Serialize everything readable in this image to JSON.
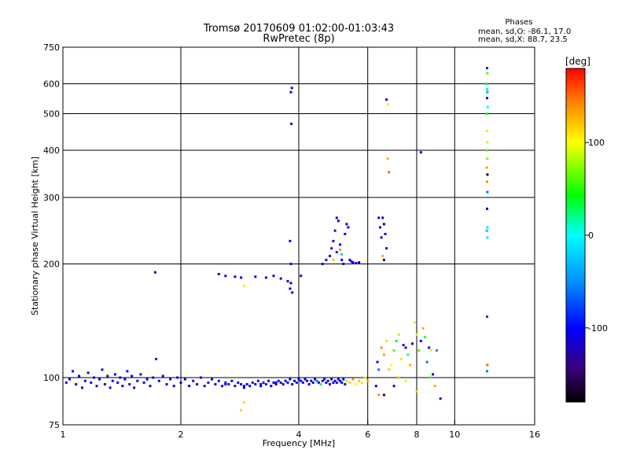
{
  "chart_data": {
    "type": "scatter",
    "title": "Tromsø 20170609 01:02:00-01:03:43",
    "subtitle": "RwPretec (8p)",
    "stats": {
      "heading": "Phases",
      "line1": "mean, sd,O: -86.1, 17.0",
      "line2": "mean, sd,X:  88.7, 23.5"
    },
    "xlabel": "Frequency [MHz]",
    "ylabel": "Stationary phase Virtual Height [km]",
    "x_scale": "log",
    "y_scale": "log",
    "xlim": [
      1,
      16
    ],
    "ylim": [
      75,
      750
    ],
    "x_ticks": [
      1,
      2,
      4,
      6,
      8,
      10,
      16
    ],
    "x_tick_labels": [
      "1",
      "2",
      "4",
      "6",
      "8",
      "10",
      "16"
    ],
    "x_grid": [
      2,
      4,
      6,
      8,
      10
    ],
    "y_ticks": [
      75,
      100,
      200,
      300,
      400,
      500,
      600,
      750
    ],
    "y_tick_labels": [
      "75",
      "100",
      "200",
      "300",
      "400",
      "500",
      "600",
      "750"
    ],
    "y_grid": [
      100,
      200,
      300,
      400,
      500,
      600
    ],
    "colorbar": {
      "label": "[deg]",
      "range": [
        -180,
        180
      ],
      "ticks": [
        100,
        0,
        -100
      ],
      "tick_labels": [
        "100",
        "0",
        "-100"
      ]
    },
    "series": [
      {
        "name": "Phase (deg)",
        "points": [
          [
            1.02,
            97,
            -110
          ],
          [
            1.04,
            99,
            -105
          ],
          [
            1.06,
            104,
            -100
          ],
          [
            1.08,
            96,
            -115
          ],
          [
            1.1,
            101,
            -108
          ],
          [
            1.12,
            94,
            -112
          ],
          [
            1.14,
            98,
            -105
          ],
          [
            1.16,
            103,
            -100
          ],
          [
            1.18,
            97,
            -110
          ],
          [
            1.2,
            100,
            -104
          ],
          [
            1.22,
            95,
            -115
          ],
          [
            1.24,
            99,
            -106
          ],
          [
            1.26,
            105,
            -100
          ],
          [
            1.28,
            96,
            -112
          ],
          [
            1.3,
            101,
            -108
          ],
          [
            1.32,
            94,
            -115
          ],
          [
            1.34,
            98,
            -110
          ],
          [
            1.36,
            102,
            -104
          ],
          [
            1.38,
            97,
            -108
          ],
          [
            1.4,
            100,
            -112
          ],
          [
            1.42,
            95,
            -105
          ],
          [
            1.44,
            99,
            -110
          ],
          [
            1.46,
            104,
            -100
          ],
          [
            1.48,
            96,
            -115
          ],
          [
            1.5,
            101,
            -106
          ],
          [
            1.52,
            94,
            -112
          ],
          [
            1.55,
            98,
            -108
          ],
          [
            1.58,
            102,
            -104
          ],
          [
            1.61,
            97,
            -110
          ],
          [
            1.64,
            99,
            -105
          ],
          [
            1.67,
            95,
            -112
          ],
          [
            1.7,
            100,
            -108
          ],
          [
            1.73,
            112,
            -90
          ],
          [
            1.76,
            98,
            -110
          ],
          [
            1.8,
            101,
            -105
          ],
          [
            1.84,
            96,
            -112
          ],
          [
            1.88,
            99,
            -108
          ],
          [
            1.92,
            95,
            -110
          ],
          [
            1.96,
            100,
            -104
          ],
          [
            2.0,
            97,
            -112
          ],
          [
            2.05,
            99,
            -108
          ],
          [
            2.1,
            95,
            -110
          ],
          [
            2.15,
            98,
            -105
          ],
          [
            2.2,
            96,
            -112
          ],
          [
            2.25,
            100,
            -108
          ],
          [
            2.3,
            95,
            -110
          ],
          [
            2.35,
            97,
            -106
          ],
          [
            2.4,
            99,
            -112
          ],
          [
            2.45,
            96,
            -108
          ],
          [
            2.5,
            98,
            -104
          ],
          [
            2.55,
            95,
            -110
          ],
          [
            2.6,
            97,
            -108
          ],
          [
            2.65,
            96,
            -112
          ],
          [
            2.7,
            98,
            -106
          ],
          [
            2.75,
            95,
            -110
          ],
          [
            2.8,
            97,
            -108
          ],
          [
            2.85,
            96,
            -112
          ],
          [
            2.9,
            94,
            -105
          ],
          [
            2.95,
            96,
            -110
          ],
          [
            3.0,
            95,
            -108
          ],
          [
            3.05,
            97,
            -112
          ],
          [
            3.1,
            96,
            -106
          ],
          [
            3.15,
            98,
            -110
          ],
          [
            3.2,
            95,
            -108
          ],
          [
            3.25,
            97,
            -104
          ],
          [
            3.3,
            96,
            -112
          ],
          [
            3.35,
            98,
            -108
          ],
          [
            3.4,
            95,
            -110
          ],
          [
            3.45,
            97,
            -106
          ],
          [
            3.5,
            96,
            -112
          ],
          [
            3.55,
            98,
            -108
          ],
          [
            3.6,
            97,
            -110
          ],
          [
            3.65,
            96,
            -104
          ],
          [
            3.7,
            98,
            -112
          ],
          [
            3.75,
            97,
            -108
          ],
          [
            3.8,
            99,
            -110
          ],
          [
            3.85,
            96,
            -106
          ],
          [
            3.9,
            98,
            -112
          ],
          [
            3.95,
            97,
            -108
          ],
          [
            4.0,
            99,
            -110
          ],
          [
            4.05,
            98,
            -105
          ],
          [
            4.1,
            97,
            -112
          ],
          [
            4.15,
            99,
            -108
          ],
          [
            4.2,
            98,
            -110
          ],
          [
            4.25,
            96,
            -104
          ],
          [
            4.3,
            98,
            -112
          ],
          [
            4.35,
            97,
            -108
          ],
          [
            4.4,
            99,
            -110
          ],
          [
            4.45,
            98,
            -60
          ],
          [
            4.5,
            97,
            -112
          ],
          [
            4.55,
            96,
            30
          ],
          [
            4.6,
            98,
            -108
          ],
          [
            4.65,
            99,
            -110
          ],
          [
            4.7,
            97,
            -104
          ],
          [
            4.75,
            98,
            -112
          ],
          [
            4.8,
            96,
            -108
          ],
          [
            4.85,
            99,
            -110
          ],
          [
            4.9,
            97,
            -106
          ],
          [
            4.95,
            98,
            -112
          ],
          [
            5.0,
            97,
            -108
          ],
          [
            5.05,
            99,
            -110
          ],
          [
            5.1,
            98,
            -104
          ],
          [
            5.15,
            97,
            -112
          ],
          [
            5.2,
            99,
            -108
          ],
          [
            5.25,
            96,
            -110
          ],
          [
            5.3,
            98,
            80
          ],
          [
            5.4,
            97,
            120
          ],
          [
            5.5,
            99,
            140
          ],
          [
            5.6,
            96,
            100
          ],
          [
            5.7,
            98,
            120
          ],
          [
            5.8,
            97,
            110
          ],
          [
            5.9,
            100,
            90
          ],
          [
            6.0,
            98,
            130
          ],
          [
            2.6,
            96,
            -110
          ],
          [
            2.9,
            95,
            -108
          ],
          [
            3.2,
            96,
            -112
          ],
          [
            3.5,
            97,
            -110
          ],
          [
            2.85,
            82,
            115
          ],
          [
            2.9,
            86,
            110
          ],
          [
            1.72,
            190,
            -110
          ],
          [
            2.5,
            188,
            -110
          ],
          [
            2.6,
            186,
            -108
          ],
          [
            2.75,
            185,
            -112
          ],
          [
            2.85,
            184,
            -110
          ],
          [
            2.9,
            175,
            110
          ],
          [
            3.1,
            185,
            -108
          ],
          [
            3.3,
            184,
            -110
          ],
          [
            3.45,
            186,
            -112
          ],
          [
            3.6,
            183,
            -108
          ],
          [
            3.75,
            180,
            -105
          ],
          [
            3.8,
            172,
            -110
          ],
          [
            3.85,
            168,
            -112
          ],
          [
            3.82,
            178,
            -104
          ],
          [
            4.05,
            186,
            -110
          ],
          [
            3.82,
            570,
            -110
          ],
          [
            3.84,
            585,
            -108
          ],
          [
            3.83,
            470,
            -112
          ],
          [
            3.8,
            230,
            -110
          ],
          [
            3.82,
            200,
            -108
          ],
          [
            4.6,
            200,
            -110
          ],
          [
            4.7,
            205,
            -108
          ],
          [
            4.8,
            210,
            -112
          ],
          [
            4.85,
            220,
            -110
          ],
          [
            4.9,
            230,
            -108
          ],
          [
            4.95,
            245,
            -112
          ],
          [
            5.0,
            265,
            -110
          ],
          [
            5.05,
            260,
            -108
          ],
          [
            5.1,
            225,
            -104
          ],
          [
            5.15,
            205,
            -110
          ],
          [
            5.2,
            200,
            -108
          ],
          [
            5.25,
            240,
            -112
          ],
          [
            5.3,
            255,
            -110
          ],
          [
            5.35,
            250,
            -108
          ],
          [
            5.4,
            205,
            -112
          ],
          [
            5.45,
            203,
            -110
          ],
          [
            5.5,
            202,
            -108
          ],
          [
            5.6,
            201,
            -112
          ],
          [
            5.7,
            202,
            -110
          ],
          [
            5.0,
            215,
            -90
          ],
          [
            4.9,
            205,
            120
          ],
          [
            5.1,
            218,
            140
          ],
          [
            5.15,
            212,
            -20
          ],
          [
            6.4,
            265,
            -110
          ],
          [
            6.45,
            250,
            -108
          ],
          [
            6.5,
            235,
            -112
          ],
          [
            6.55,
            265,
            -110
          ],
          [
            6.6,
            255,
            -160
          ],
          [
            6.65,
            240,
            -120
          ],
          [
            6.7,
            220,
            -110
          ],
          [
            6.6,
            205,
            -112
          ],
          [
            6.55,
            210,
            130
          ],
          [
            6.75,
            380,
            130
          ],
          [
            6.8,
            350,
            150
          ],
          [
            6.7,
            545,
            -110
          ],
          [
            6.75,
            530,
            110
          ],
          [
            6.3,
            95,
            -110
          ],
          [
            6.35,
            110,
            -100
          ],
          [
            6.4,
            105,
            -60
          ],
          [
            6.5,
            120,
            140
          ],
          [
            6.6,
            115,
            130
          ],
          [
            6.7,
            125,
            110
          ],
          [
            6.8,
            105,
            120
          ],
          [
            6.9,
            108,
            100
          ],
          [
            7.0,
            118,
            60
          ],
          [
            7.1,
            125,
            40
          ],
          [
            7.2,
            130,
            80
          ],
          [
            7.3,
            112,
            110
          ],
          [
            7.4,
            122,
            -110
          ],
          [
            7.5,
            120,
            -120
          ],
          [
            7.6,
            115,
            20
          ],
          [
            7.7,
            108,
            130
          ],
          [
            7.8,
            123,
            -150
          ],
          [
            7.9,
            140,
            110
          ],
          [
            8.0,
            130,
            90
          ],
          [
            8.1,
            118,
            60
          ],
          [
            8.2,
            125,
            -110
          ],
          [
            8.3,
            135,
            130
          ],
          [
            8.4,
            128,
            20
          ],
          [
            8.5,
            110,
            -60
          ],
          [
            8.6,
            120,
            -100
          ],
          [
            8.7,
            118,
            110
          ],
          [
            8.8,
            102,
            -110
          ],
          [
            8.9,
            95,
            130
          ],
          [
            9.0,
            118,
            -50
          ],
          [
            7.0,
            95,
            -110
          ],
          [
            7.2,
            100,
            120
          ],
          [
            7.5,
            98,
            110
          ],
          [
            8.0,
            92,
            120
          ],
          [
            6.6,
            90,
            -160
          ],
          [
            6.4,
            90,
            140
          ],
          [
            8.2,
            395,
            -110
          ],
          [
            9.2,
            88,
            -150
          ],
          [
            8.7,
            100,
            60
          ],
          [
            12.1,
            660,
            -90
          ],
          [
            12.12,
            640,
            60
          ],
          [
            12.08,
            600,
            30
          ],
          [
            12.1,
            580,
            20
          ],
          [
            12.12,
            570,
            -40
          ],
          [
            12.1,
            550,
            -110
          ],
          [
            12.14,
            520,
            0
          ],
          [
            12.08,
            500,
            30
          ],
          [
            12.1,
            450,
            110
          ],
          [
            12.12,
            420,
            90
          ],
          [
            12.1,
            400,
            60
          ],
          [
            12.12,
            380,
            70
          ],
          [
            12.08,
            360,
            130
          ],
          [
            12.12,
            345,
            -170
          ],
          [
            12.1,
            330,
            140
          ],
          [
            12.12,
            310,
            -60
          ],
          [
            12.1,
            280,
            -110
          ],
          [
            12.12,
            250,
            -10
          ],
          [
            12.08,
            245,
            -30
          ],
          [
            12.12,
            235,
            -10
          ],
          [
            12.1,
            145,
            -80
          ],
          [
            12.12,
            108,
            150
          ],
          [
            12.1,
            104,
            -60
          ]
        ]
      }
    ]
  }
}
